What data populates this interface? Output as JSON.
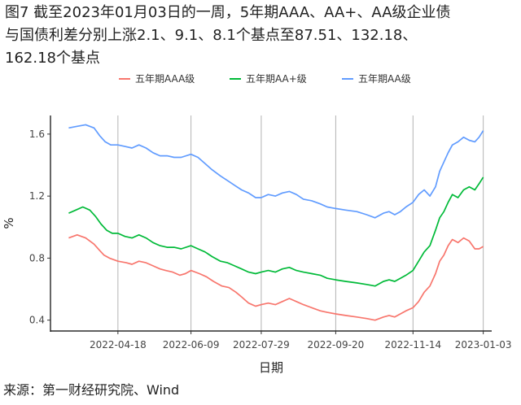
{
  "title_lines": [
    "图7  截至2023年01月03日的一周，5年期AAA、AA+、AA级企业债",
    "与国债利差分别上涨2.1、9.1、8.1个基点至87.51、132.18、",
    "162.18个基点"
  ],
  "source": "来源：第一财经研究院、Wind",
  "chart_data": {
    "type": "line",
    "title": "图7  截至2023年01月03日的一周，5年期AAA、AA+、AA级企业债与国债利差分别上涨2.1、9.1、8.1个基点至87.51、132.18、162.18个基点",
    "xlabel": "日期",
    "ylabel": "%",
    "x_ticks": [
      "2022-04-18",
      "2022-06-09",
      "2022-07-29",
      "2022-09-20",
      "2022-11-14",
      "2023-01-03"
    ],
    "y_ticks": [
      "0.4",
      "0.8",
      "1.2",
      "1.6"
    ],
    "y_range": [
      0.33,
      1.72
    ],
    "grid": "vertical",
    "legend_position": "top",
    "series": [
      {
        "name": "五年期AAA级",
        "color": "#F8766D",
        "points": [
          [
            "2022-03-14",
            0.93
          ],
          [
            "2022-03-20",
            0.95
          ],
          [
            "2022-03-26",
            0.93
          ],
          [
            "2022-04-01",
            0.89
          ],
          [
            "2022-04-05",
            0.85
          ],
          [
            "2022-04-08",
            0.82
          ],
          [
            "2022-04-12",
            0.8
          ],
          [
            "2022-04-18",
            0.78
          ],
          [
            "2022-04-24",
            0.77
          ],
          [
            "2022-04-28",
            0.76
          ],
          [
            "2022-05-03",
            0.78
          ],
          [
            "2022-05-08",
            0.77
          ],
          [
            "2022-05-13",
            0.75
          ],
          [
            "2022-05-18",
            0.73
          ],
          [
            "2022-05-22",
            0.72
          ],
          [
            "2022-05-27",
            0.71
          ],
          [
            "2022-06-01",
            0.69
          ],
          [
            "2022-06-05",
            0.7
          ],
          [
            "2022-06-09",
            0.72
          ],
          [
            "2022-06-15",
            0.7
          ],
          [
            "2022-06-20",
            0.68
          ],
          [
            "2022-06-25",
            0.65
          ],
          [
            "2022-07-01",
            0.62
          ],
          [
            "2022-07-06",
            0.61
          ],
          [
            "2022-07-11",
            0.58
          ],
          [
            "2022-07-15",
            0.55
          ],
          [
            "2022-07-20",
            0.51
          ],
          [
            "2022-07-25",
            0.49
          ],
          [
            "2022-07-29",
            0.5
          ],
          [
            "2022-08-03",
            0.51
          ],
          [
            "2022-08-08",
            0.5
          ],
          [
            "2022-08-13",
            0.52
          ],
          [
            "2022-08-18",
            0.54
          ],
          [
            "2022-08-23",
            0.52
          ],
          [
            "2022-08-28",
            0.5
          ],
          [
            "2022-09-03",
            0.48
          ],
          [
            "2022-09-09",
            0.46
          ],
          [
            "2022-09-14",
            0.45
          ],
          [
            "2022-09-20",
            0.44
          ],
          [
            "2022-09-27",
            0.43
          ],
          [
            "2022-10-05",
            0.42
          ],
          [
            "2022-10-12",
            0.41
          ],
          [
            "2022-10-18",
            0.4
          ],
          [
            "2022-10-24",
            0.42
          ],
          [
            "2022-10-28",
            0.43
          ],
          [
            "2022-11-01",
            0.42
          ],
          [
            "2022-11-05",
            0.44
          ],
          [
            "2022-11-09",
            0.46
          ],
          [
            "2022-11-14",
            0.48
          ],
          [
            "2022-11-18",
            0.52
          ],
          [
            "2022-11-22",
            0.58
          ],
          [
            "2022-11-26",
            0.62
          ],
          [
            "2022-11-30",
            0.7
          ],
          [
            "2022-12-03",
            0.78
          ],
          [
            "2022-12-06",
            0.82
          ],
          [
            "2022-12-09",
            0.88
          ],
          [
            "2022-12-12",
            0.92
          ],
          [
            "2022-12-16",
            0.9
          ],
          [
            "2022-12-20",
            0.93
          ],
          [
            "2022-12-24",
            0.91
          ],
          [
            "2022-12-28",
            0.86
          ],
          [
            "2022-12-31",
            0.86
          ],
          [
            "2023-01-03",
            0.875
          ]
        ]
      },
      {
        "name": "五年期AA+级",
        "color": "#00BA38",
        "points": [
          [
            "2022-03-14",
            1.09
          ],
          [
            "2022-03-19",
            1.11
          ],
          [
            "2022-03-24",
            1.13
          ],
          [
            "2022-03-29",
            1.11
          ],
          [
            "2022-04-02",
            1.07
          ],
          [
            "2022-04-06",
            1.02
          ],
          [
            "2022-04-10",
            0.98
          ],
          [
            "2022-04-14",
            0.96
          ],
          [
            "2022-04-18",
            0.96
          ],
          [
            "2022-04-23",
            0.94
          ],
          [
            "2022-04-28",
            0.93
          ],
          [
            "2022-05-03",
            0.95
          ],
          [
            "2022-05-08",
            0.93
          ],
          [
            "2022-05-13",
            0.9
          ],
          [
            "2022-05-18",
            0.88
          ],
          [
            "2022-05-23",
            0.87
          ],
          [
            "2022-05-28",
            0.87
          ],
          [
            "2022-06-02",
            0.86
          ],
          [
            "2022-06-09",
            0.88
          ],
          [
            "2022-06-14",
            0.86
          ],
          [
            "2022-06-19",
            0.84
          ],
          [
            "2022-06-24",
            0.81
          ],
          [
            "2022-06-30",
            0.78
          ],
          [
            "2022-07-05",
            0.77
          ],
          [
            "2022-07-10",
            0.75
          ],
          [
            "2022-07-15",
            0.73
          ],
          [
            "2022-07-20",
            0.71
          ],
          [
            "2022-07-25",
            0.7
          ],
          [
            "2022-07-29",
            0.71
          ],
          [
            "2022-08-03",
            0.72
          ],
          [
            "2022-08-08",
            0.71
          ],
          [
            "2022-08-13",
            0.73
          ],
          [
            "2022-08-18",
            0.74
          ],
          [
            "2022-08-23",
            0.72
          ],
          [
            "2022-08-28",
            0.71
          ],
          [
            "2022-09-03",
            0.7
          ],
          [
            "2022-09-09",
            0.69
          ],
          [
            "2022-09-14",
            0.67
          ],
          [
            "2022-09-20",
            0.66
          ],
          [
            "2022-09-27",
            0.65
          ],
          [
            "2022-10-05",
            0.64
          ],
          [
            "2022-10-12",
            0.63
          ],
          [
            "2022-10-18",
            0.62
          ],
          [
            "2022-10-24",
            0.65
          ],
          [
            "2022-10-28",
            0.66
          ],
          [
            "2022-11-01",
            0.65
          ],
          [
            "2022-11-05",
            0.67
          ],
          [
            "2022-11-09",
            0.69
          ],
          [
            "2022-11-14",
            0.72
          ],
          [
            "2022-11-18",
            0.78
          ],
          [
            "2022-11-22",
            0.84
          ],
          [
            "2022-11-26",
            0.88
          ],
          [
            "2022-11-30",
            0.98
          ],
          [
            "2022-12-03",
            1.06
          ],
          [
            "2022-12-06",
            1.1
          ],
          [
            "2022-12-09",
            1.16
          ],
          [
            "2022-12-12",
            1.21
          ],
          [
            "2022-12-16",
            1.19
          ],
          [
            "2022-12-20",
            1.24
          ],
          [
            "2022-12-24",
            1.26
          ],
          [
            "2022-12-28",
            1.24
          ],
          [
            "2022-12-31",
            1.28
          ],
          [
            "2023-01-03",
            1.322
          ]
        ]
      },
      {
        "name": "五年期AA级",
        "color": "#619CFF",
        "points": [
          [
            "2022-03-14",
            1.64
          ],
          [
            "2022-03-20",
            1.65
          ],
          [
            "2022-03-26",
            1.66
          ],
          [
            "2022-04-01",
            1.64
          ],
          [
            "2022-04-05",
            1.59
          ],
          [
            "2022-04-09",
            1.55
          ],
          [
            "2022-04-13",
            1.53
          ],
          [
            "2022-04-18",
            1.53
          ],
          [
            "2022-04-23",
            1.52
          ],
          [
            "2022-04-28",
            1.51
          ],
          [
            "2022-05-03",
            1.53
          ],
          [
            "2022-05-08",
            1.51
          ],
          [
            "2022-05-13",
            1.48
          ],
          [
            "2022-05-18",
            1.46
          ],
          [
            "2022-05-23",
            1.46
          ],
          [
            "2022-05-28",
            1.45
          ],
          [
            "2022-06-02",
            1.45
          ],
          [
            "2022-06-09",
            1.47
          ],
          [
            "2022-06-14",
            1.45
          ],
          [
            "2022-06-19",
            1.41
          ],
          [
            "2022-06-24",
            1.37
          ],
          [
            "2022-06-30",
            1.33
          ],
          [
            "2022-07-05",
            1.3
          ],
          [
            "2022-07-10",
            1.27
          ],
          [
            "2022-07-15",
            1.24
          ],
          [
            "2022-07-20",
            1.22
          ],
          [
            "2022-07-25",
            1.19
          ],
          [
            "2022-07-29",
            1.19
          ],
          [
            "2022-08-03",
            1.21
          ],
          [
            "2022-08-08",
            1.2
          ],
          [
            "2022-08-13",
            1.22
          ],
          [
            "2022-08-18",
            1.23
          ],
          [
            "2022-08-23",
            1.21
          ],
          [
            "2022-08-28",
            1.18
          ],
          [
            "2022-09-03",
            1.17
          ],
          [
            "2022-09-09",
            1.15
          ],
          [
            "2022-09-14",
            1.13
          ],
          [
            "2022-09-20",
            1.12
          ],
          [
            "2022-09-27",
            1.11
          ],
          [
            "2022-10-05",
            1.1
          ],
          [
            "2022-10-12",
            1.08
          ],
          [
            "2022-10-18",
            1.06
          ],
          [
            "2022-10-24",
            1.09
          ],
          [
            "2022-10-28",
            1.1
          ],
          [
            "2022-11-01",
            1.08
          ],
          [
            "2022-11-05",
            1.1
          ],
          [
            "2022-11-09",
            1.13
          ],
          [
            "2022-11-14",
            1.16
          ],
          [
            "2022-11-18",
            1.21
          ],
          [
            "2022-11-22",
            1.24
          ],
          [
            "2022-11-26",
            1.2
          ],
          [
            "2022-11-30",
            1.26
          ],
          [
            "2022-12-03",
            1.36
          ],
          [
            "2022-12-06",
            1.42
          ],
          [
            "2022-12-09",
            1.48
          ],
          [
            "2022-12-12",
            1.53
          ],
          [
            "2022-12-16",
            1.55
          ],
          [
            "2022-12-20",
            1.58
          ],
          [
            "2022-12-24",
            1.56
          ],
          [
            "2022-12-28",
            1.55
          ],
          [
            "2022-12-31",
            1.58
          ],
          [
            "2023-01-03",
            1.622
          ]
        ]
      }
    ]
  }
}
